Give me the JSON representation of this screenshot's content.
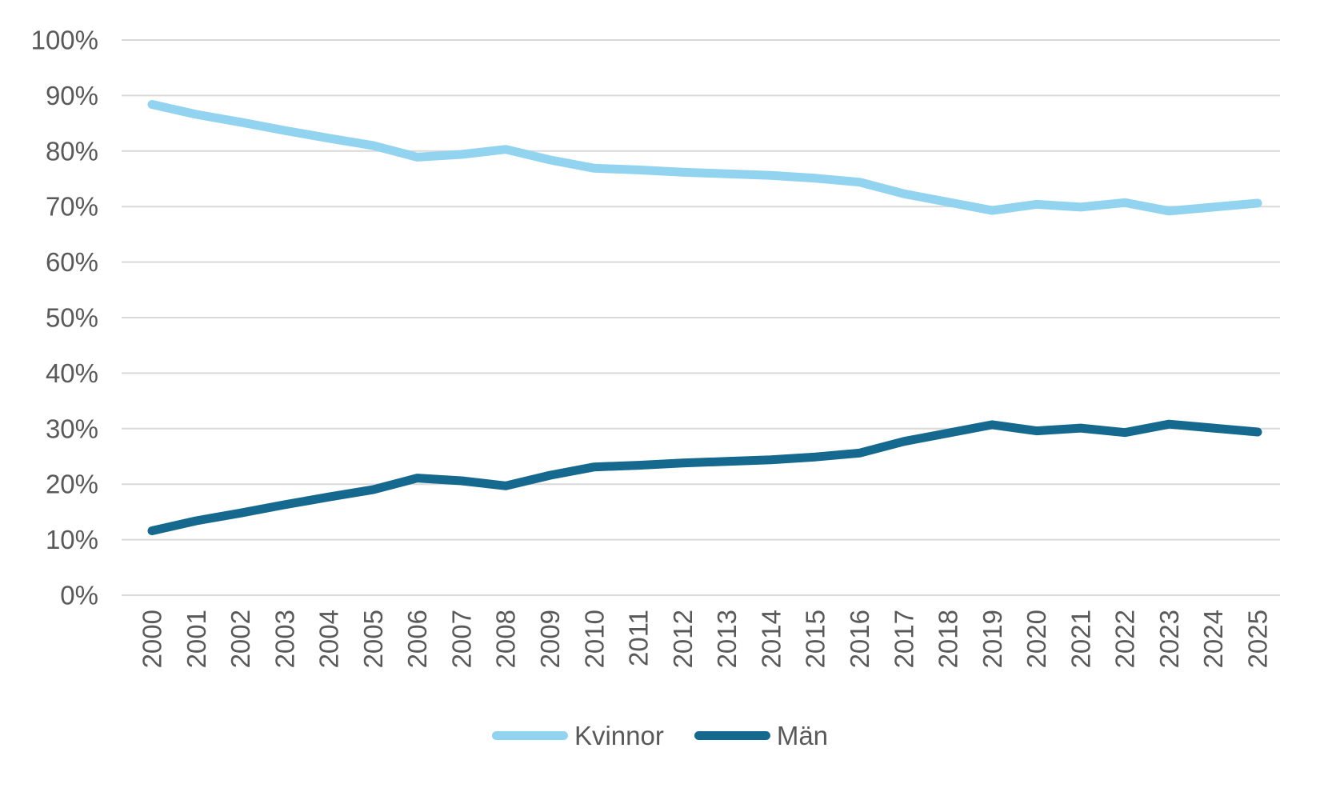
{
  "chart_data": {
    "type": "line",
    "title": "",
    "xlabel": "",
    "ylabel": "",
    "categories": [
      "2000",
      "2001",
      "2002",
      "2003",
      "2004",
      "2005",
      "2006",
      "2007",
      "2008",
      "2009",
      "2010",
      "2011",
      "2012",
      "2013",
      "2014",
      "2015",
      "2016",
      "2017",
      "2018",
      "2019",
      "2020",
      "2021",
      "2022",
      "2023",
      "2024",
      "2025"
    ],
    "series": [
      {
        "name": "Kvinnor",
        "color": "#92D3F0",
        "values": [
          88.4,
          86.6,
          85.2,
          83.7,
          82.3,
          81.0,
          78.9,
          79.4,
          80.3,
          78.4,
          76.9,
          76.6,
          76.2,
          75.9,
          75.6,
          75.1,
          74.4,
          72.3,
          70.8,
          69.3,
          70.4,
          69.9,
          70.7,
          69.2,
          69.9,
          70.6
        ]
      },
      {
        "name": "Män",
        "color": "#15698F",
        "values": [
          11.6,
          13.4,
          14.8,
          16.3,
          17.7,
          19.0,
          21.1,
          20.6,
          19.7,
          21.6,
          23.1,
          23.4,
          23.8,
          24.1,
          24.4,
          24.9,
          25.6,
          27.7,
          29.2,
          30.7,
          29.6,
          30.1,
          29.3,
          30.8,
          30.1,
          29.4
        ]
      }
    ],
    "y_ticks": [
      "0%",
      "10%",
      "20%",
      "30%",
      "40%",
      "50%",
      "60%",
      "70%",
      "80%",
      "90%",
      "100%"
    ],
    "ylim": [
      0,
      100
    ],
    "grid": "horizontal",
    "gridline_color": "#D9D9D9",
    "text_color": "#595959",
    "background": "#FFFFFF",
    "legend_position": "bottom",
    "x_tick_rotation": -90
  }
}
